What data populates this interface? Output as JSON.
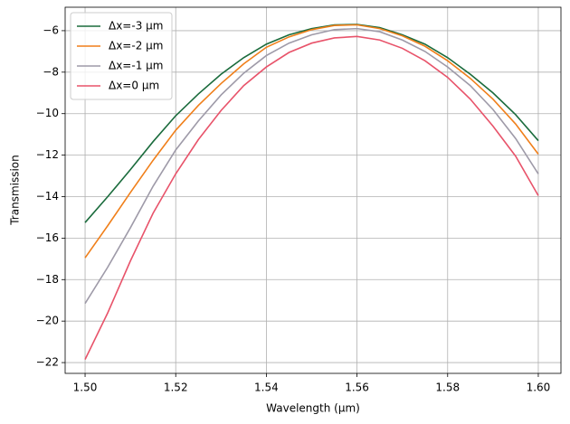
{
  "chart_data": {
    "type": "line",
    "xlabel": "Wavelength (µm)",
    "ylabel": "Transmission",
    "x": [
      1.5,
      1.505,
      1.51,
      1.515,
      1.52,
      1.525,
      1.53,
      1.535,
      1.54,
      1.545,
      1.55,
      1.555,
      1.56,
      1.565,
      1.57,
      1.575,
      1.58,
      1.585,
      1.59,
      1.595,
      1.6
    ],
    "series": [
      {
        "name": "Δx=-3 µm",
        "color": "#1a6b3c",
        "values": [
          -15.25,
          -14.0,
          -12.7,
          -11.35,
          -10.1,
          -9.05,
          -8.1,
          -7.3,
          -6.65,
          -6.2,
          -5.9,
          -5.72,
          -5.7,
          -5.85,
          -6.2,
          -6.65,
          -7.3,
          -8.1,
          -9.0,
          -10.05,
          -11.3
        ]
      },
      {
        "name": "Δx=-2 µm",
        "color": "#f07f1a",
        "values": [
          -16.95,
          -15.4,
          -13.8,
          -12.25,
          -10.8,
          -9.6,
          -8.55,
          -7.6,
          -6.8,
          -6.3,
          -5.95,
          -5.75,
          -5.72,
          -5.9,
          -6.25,
          -6.75,
          -7.45,
          -8.3,
          -9.3,
          -10.5,
          -11.95
        ]
      },
      {
        "name": "Δx=-1 µm",
        "color": "#9e9aa8",
        "values": [
          -19.15,
          -17.4,
          -15.5,
          -13.5,
          -11.75,
          -10.35,
          -9.1,
          -8.05,
          -7.2,
          -6.6,
          -6.2,
          -5.95,
          -5.9,
          -6.05,
          -6.45,
          -7.0,
          -7.75,
          -8.65,
          -9.8,
          -11.2,
          -12.9
        ]
      },
      {
        "name": "Δx=0 µm",
        "color": "#e8536a",
        "values": [
          -21.85,
          -19.6,
          -17.1,
          -14.8,
          -12.9,
          -11.25,
          -9.85,
          -8.65,
          -7.75,
          -7.05,
          -6.6,
          -6.35,
          -6.28,
          -6.45,
          -6.85,
          -7.45,
          -8.25,
          -9.3,
          -10.6,
          -12.05,
          -13.95
        ]
      }
    ],
    "xlim": [
      1.4956,
      1.605
    ],
    "ylim": [
      -22.52,
      -4.87
    ],
    "xticks": [
      {
        "value": 1.5,
        "label": "1.50"
      },
      1.52,
      1.54,
      1.56,
      1.58,
      {
        "value": 1.6,
        "label": "1.60"
      }
    ],
    "yticks": [
      {
        "value": -22,
        "label": "−22"
      },
      {
        "value": -20,
        "label": "−20"
      },
      {
        "value": -18,
        "label": "−18"
      },
      {
        "value": -16,
        "label": "−16"
      },
      {
        "value": -14,
        "label": "−14"
      },
      {
        "value": -12,
        "label": "−12"
      },
      {
        "value": -10,
        "label": "−10"
      },
      {
        "value": -8,
        "label": "−8"
      },
      {
        "value": -6,
        "label": "−6"
      }
    ],
    "grid": true,
    "legend": "upper-left"
  }
}
